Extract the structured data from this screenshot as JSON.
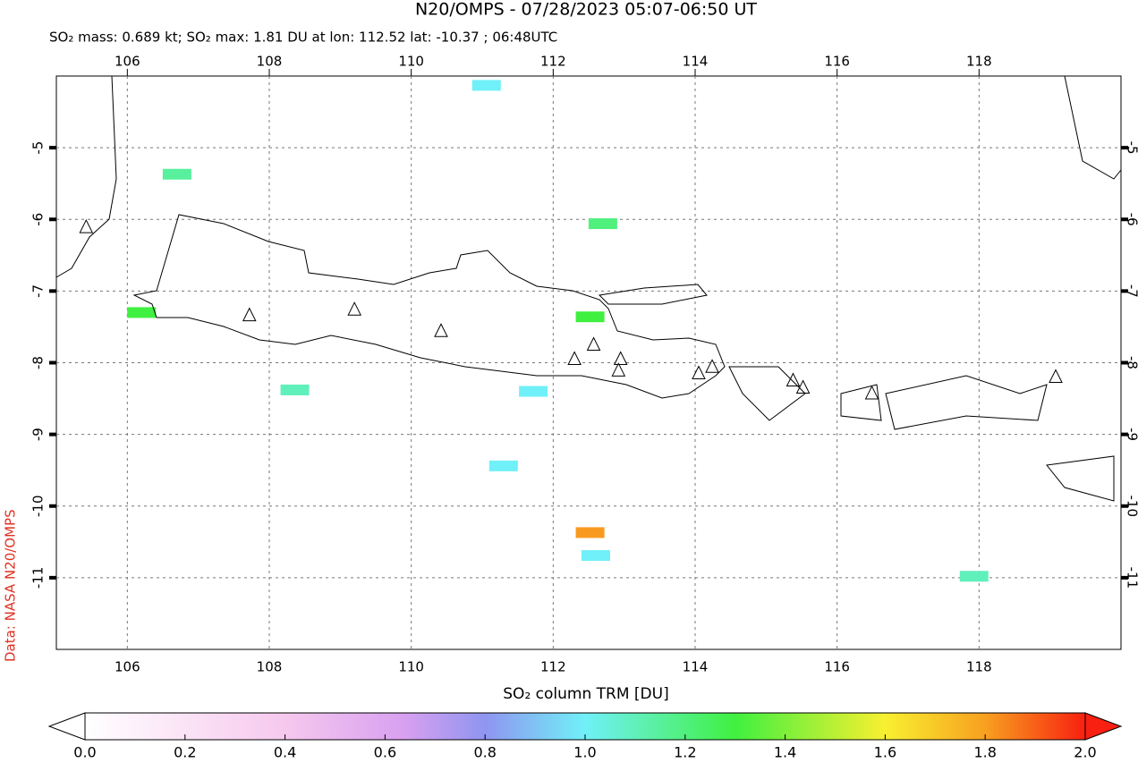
{
  "title": "N20/OMPS - 07/28/2023 05:07-06:50 UT",
  "subtitle": "SO₂ mass: 0.689 kt; SO₂ max: 1.81 DU at lon: 112.52 lat: -10.37 ; 06:48UTC",
  "credit": "Data: NASA N20/OMPS",
  "map": {
    "xlim": [
      105,
      120
    ],
    "ylim": [
      -12,
      -4
    ],
    "xticks": [
      106,
      108,
      110,
      112,
      114,
      116,
      118
    ],
    "yticks": [
      -5,
      -6,
      -7,
      -8,
      -9,
      -10,
      -11
    ],
    "pixels": [
      {
        "lon": 112.52,
        "lat": -10.37,
        "value": 1.81
      },
      {
        "lon": 112.52,
        "lat": -7.36,
        "value": 1.3
      },
      {
        "lon": 112.7,
        "lat": -6.06,
        "value": 1.2
      },
      {
        "lon": 106.2,
        "lat": -7.3,
        "value": 1.3
      },
      {
        "lon": 106.7,
        "lat": -5.37,
        "value": 1.15
      },
      {
        "lon": 111.72,
        "lat": -8.4,
        "value": 1.0
      },
      {
        "lon": 112.6,
        "lat": -10.69,
        "value": 1.0
      },
      {
        "lon": 111.06,
        "lat": -4.13,
        "value": 1.0
      },
      {
        "lon": 111.3,
        "lat": -9.44,
        "value": 1.0
      },
      {
        "lon": 108.36,
        "lat": -8.38,
        "value": 1.1
      },
      {
        "lon": 117.93,
        "lat": -10.98,
        "value": 1.1
      }
    ],
    "volcanoes": [
      [
        105.42,
        -6.11
      ],
      [
        107.72,
        -7.34
      ],
      [
        109.2,
        -7.26
      ],
      [
        110.42,
        -7.56
      ],
      [
        112.3,
        -7.95
      ],
      [
        112.57,
        -7.75
      ],
      [
        112.95,
        -7.95
      ],
      [
        112.92,
        -8.11
      ],
      [
        114.05,
        -8.15
      ],
      [
        114.24,
        -8.06
      ],
      [
        115.38,
        -8.25
      ],
      [
        115.52,
        -8.35
      ],
      [
        116.49,
        -8.43
      ],
      [
        119.08,
        -8.2
      ]
    ]
  },
  "colorbar": {
    "label": "SO₂ column TRM [DU]",
    "lim": [
      0,
      2
    ],
    "ticks": [
      {
        "value": 0,
        "label": "0.0"
      },
      0.2,
      0.4,
      0.6,
      0.8,
      {
        "value": 1,
        "label": "1.0"
      },
      1.2,
      1.4,
      1.6,
      1.8,
      {
        "value": 2,
        "label": "2.0"
      }
    ]
  }
}
